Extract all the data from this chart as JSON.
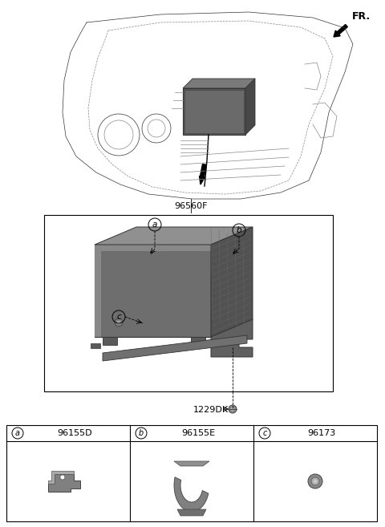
{
  "bg_color": "#ffffff",
  "label_96560F": "96560F",
  "label_1229DK": "1229DK",
  "parts": [
    {
      "id": "a",
      "code": "96155D"
    },
    {
      "id": "b",
      "code": "96155E"
    },
    {
      "id": "c",
      "code": "96173"
    }
  ],
  "fr_label": "FR.",
  "fig_width": 4.8,
  "fig_height": 6.57,
  "dpi": 100,
  "unit_color": "#888888",
  "unit_dark": "#555555",
  "unit_darker": "#444444",
  "unit_light": "#aaaaaa",
  "line_color": "#333333"
}
